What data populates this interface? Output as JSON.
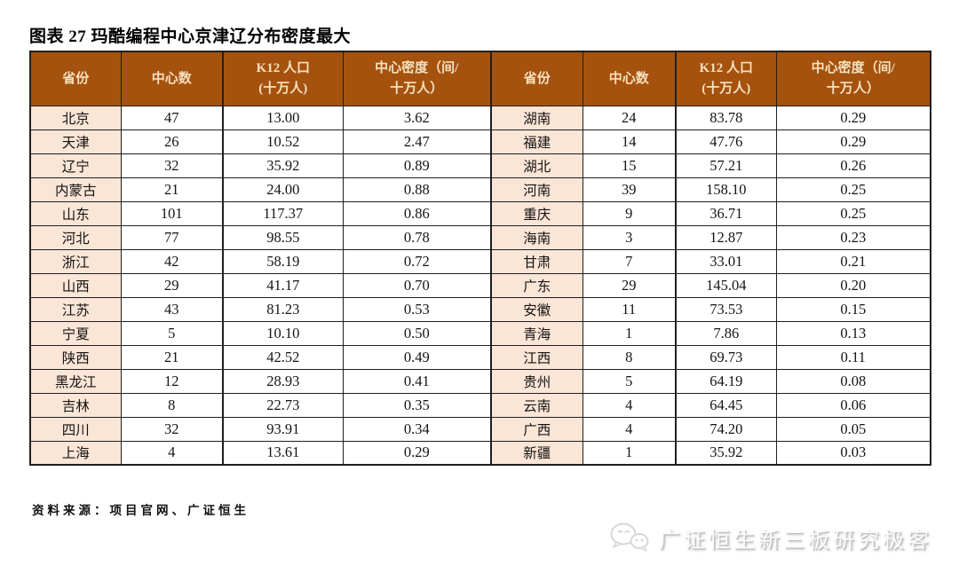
{
  "title": "图表 27 玛酷编程中心京津辽分布密度最大",
  "source": "资料来源：项目官网、广证恒生",
  "watermark": {
    "text": "广证恒生新三板研究极客",
    "icon": "wechat-speech-bubbles"
  },
  "colors": {
    "header_bg": "#A5520E",
    "header_text": "#F5E0BE",
    "province_bg": "#FBE5D6",
    "border": "#1F1F1F",
    "watermark_text": "#FBFBFB",
    "watermark_shadow": "#BDBDBD"
  },
  "table": {
    "panels": 2,
    "rows_per_panel": 15,
    "header_columns": [
      {
        "line1": "省份",
        "line2": ""
      },
      {
        "line1": "中心数",
        "line2": ""
      },
      {
        "line1": "K12 人口",
        "line2": "(十万人)"
      },
      {
        "line1": "中心密度（间/",
        "line2": "十万人）"
      }
    ]
  },
  "chart_data": {
    "type": "table",
    "title": "图表 27 玛酷编程中心京津辽分布密度最大",
    "columns": [
      "省份",
      "中心数",
      "K12 人口 (十万人)",
      "中心密度（间/十万人）"
    ],
    "layout": "two side-by-side panels; rows 1-15 shown in left panel, rows 16-30 in right panel; sorted by density descending",
    "rows": [
      [
        "北京",
        "47",
        "13.00",
        "3.62"
      ],
      [
        "天津",
        "26",
        "10.52",
        "2.47"
      ],
      [
        "辽宁",
        "32",
        "35.92",
        "0.89"
      ],
      [
        "内蒙古",
        "21",
        "24.00",
        "0.88"
      ],
      [
        "山东",
        "101",
        "117.37",
        "0.86"
      ],
      [
        "河北",
        "77",
        "98.55",
        "0.78"
      ],
      [
        "浙江",
        "42",
        "58.19",
        "0.72"
      ],
      [
        "山西",
        "29",
        "41.17",
        "0.70"
      ],
      [
        "江苏",
        "43",
        "81.23",
        "0.53"
      ],
      [
        "宁夏",
        "5",
        "10.10",
        "0.50"
      ],
      [
        "陕西",
        "21",
        "42.52",
        "0.49"
      ],
      [
        "黑龙江",
        "12",
        "28.93",
        "0.41"
      ],
      [
        "吉林",
        "8",
        "22.73",
        "0.35"
      ],
      [
        "四川",
        "32",
        "93.91",
        "0.34"
      ],
      [
        "上海",
        "4",
        "13.61",
        "0.29"
      ],
      [
        "湖南",
        "24",
        "83.78",
        "0.29"
      ],
      [
        "福建",
        "14",
        "47.76",
        "0.29"
      ],
      [
        "湖北",
        "15",
        "57.21",
        "0.26"
      ],
      [
        "河南",
        "39",
        "158.10",
        "0.25"
      ],
      [
        "重庆",
        "9",
        "36.71",
        "0.25"
      ],
      [
        "海南",
        "3",
        "12.87",
        "0.23"
      ],
      [
        "甘肃",
        "7",
        "33.01",
        "0.21"
      ],
      [
        "广东",
        "29",
        "145.04",
        "0.20"
      ],
      [
        "安徽",
        "11",
        "73.53",
        "0.15"
      ],
      [
        "青海",
        "1",
        "7.86",
        "0.13"
      ],
      [
        "江西",
        "8",
        "69.73",
        "0.11"
      ],
      [
        "贵州",
        "5",
        "64.19",
        "0.08"
      ],
      [
        "云南",
        "4",
        "64.45",
        "0.06"
      ],
      [
        "广西",
        "4",
        "74.20",
        "0.05"
      ],
      [
        "新疆",
        "1",
        "35.92",
        "0.03"
      ]
    ]
  }
}
